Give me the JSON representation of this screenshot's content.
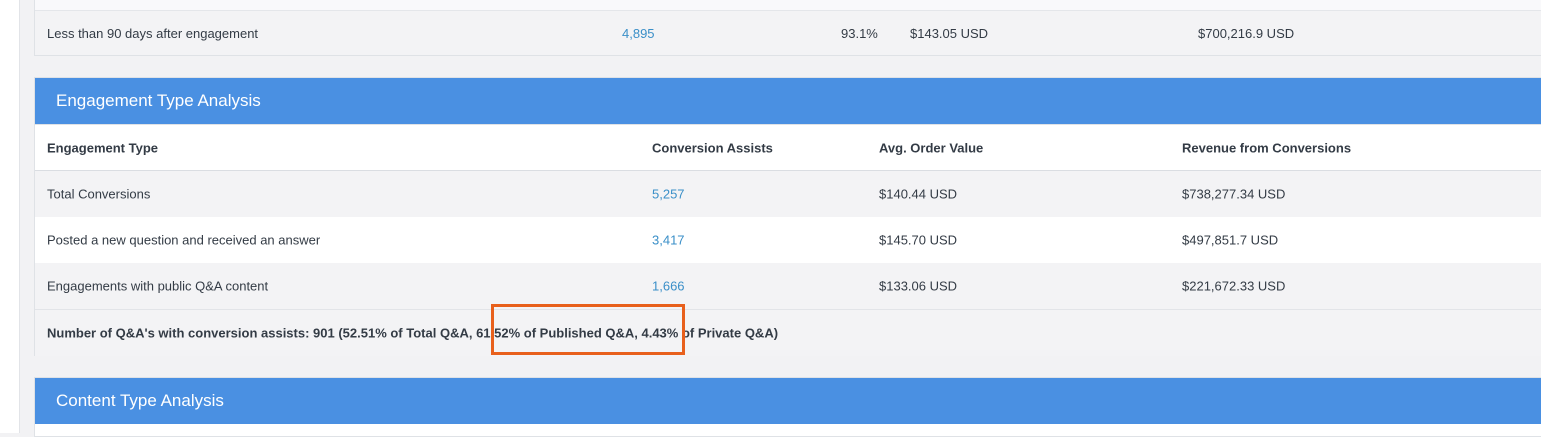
{
  "top_table": {
    "row": {
      "label": "Less than 90 days after engagement",
      "assists": "4,895",
      "percent": "93.1%",
      "avg_order": "$143.05 USD",
      "revenue": "$700,216.9 USD"
    }
  },
  "engagement_panel": {
    "title": "Engagement Type Analysis",
    "columns": {
      "type": "Engagement Type",
      "assists": "Conversion Assists",
      "avg_order": "Avg. Order Value",
      "revenue": "Revenue from Conversions"
    },
    "rows": [
      {
        "type": "Total Conversions",
        "assists": "5,257",
        "avg_order": "$140.44 USD",
        "revenue": "$738,277.34 USD"
      },
      {
        "type": "Posted a new question and received an answer",
        "assists": "3,417",
        "avg_order": "$145.70 USD",
        "revenue": "$497,851.7 USD"
      },
      {
        "type": "Engagements with public Q&A content",
        "assists": "1,666",
        "avg_order": "$133.06 USD",
        "revenue": "$221,672.33 USD"
      }
    ],
    "summary": "Number of Q&A's with conversion assists: 901 (52.51% of Total Q&A, 61.52% of Published Q&A, 4.43% of Private Q&A)"
  },
  "content_panel": {
    "title": "Content Type Analysis"
  },
  "colors": {
    "header_blue": "#4a90e2",
    "link_blue": "#3a8fc8",
    "highlight_orange": "#e8601c"
  }
}
